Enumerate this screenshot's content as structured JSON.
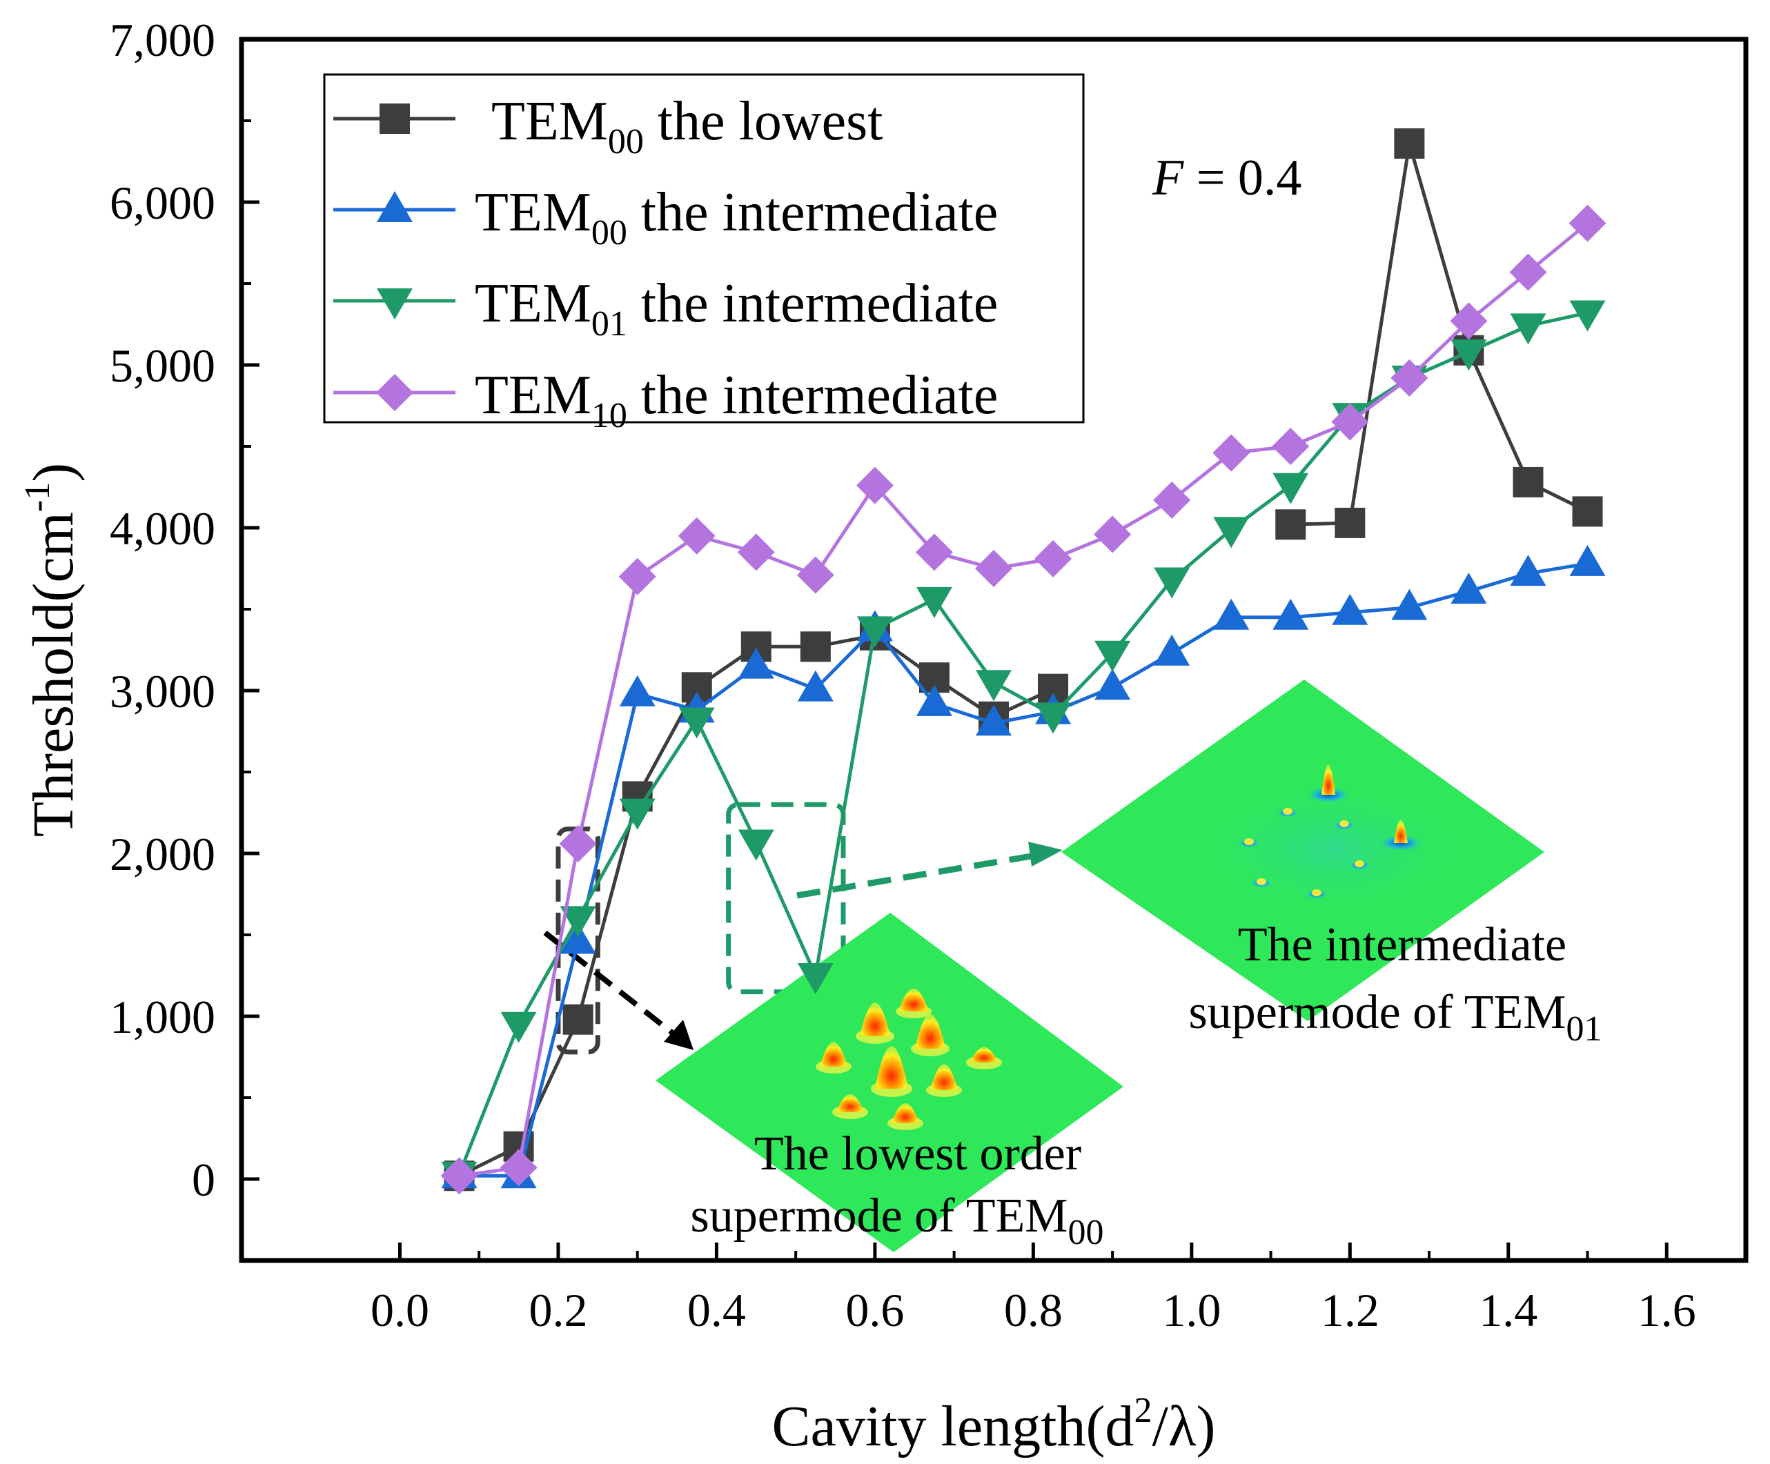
{
  "chart_data": {
    "type": "line",
    "xlabel": {
      "text": "Cavity length(d",
      "sup": "2",
      "after": "/λ)"
    },
    "ylabel": {
      "text": "Threshold(cm",
      "sup": "-1",
      "after": ")"
    },
    "xlim": [
      -0.2,
      1.7
    ],
    "ylim": [
      -500,
      7000
    ],
    "xticks": [
      0.0,
      0.2,
      0.4,
      0.6,
      0.8,
      1.0,
      1.2,
      1.4,
      1.6
    ],
    "xtick_labels": [
      "0.0",
      "0.2",
      "0.4",
      "0.6",
      "0.8",
      "1.0",
      "1.2",
      "1.4",
      "1.6"
    ],
    "yticks": [
      0,
      1000,
      2000,
      3000,
      4000,
      5000,
      6000,
      7000
    ],
    "ytick_labels": [
      "0",
      "1,000",
      "2,000",
      "3,000",
      "4,000",
      "5,000",
      "6,000",
      "7,000"
    ],
    "annotation": {
      "italic": "F",
      "rest": " = 0.4"
    },
    "series": [
      {
        "name": "TEM00 the lowest",
        "label": {
          "base": "TEM",
          "sub": "00",
          "rest": " the lowest"
        },
        "color": "#3d3d3d",
        "marker": "square",
        "segments": [
          {
            "x": [
              0.075,
              0.15,
              0.225,
              0.3,
              0.375,
              0.45,
              0.525,
              0.6,
              0.675,
              0.75,
              0.825
            ],
            "y": [
              20,
              200,
              980,
              2350,
              3020,
              3270,
              3270,
              3340,
              3080,
              2840,
              3010
            ]
          },
          {
            "x": [
              1.125,
              1.2,
              1.275,
              1.35,
              1.425,
              1.5
            ],
            "y": [
              4020,
              4030,
              6360,
              5090,
              4280,
              4100
            ]
          }
        ]
      },
      {
        "name": "TEM00 the intermediate",
        "label": {
          "base": "TEM",
          "sub": "00",
          "rest": " the intermediate"
        },
        "color": "#1a6ad6",
        "marker": "triangle-up",
        "segments": [
          {
            "x": [
              0.075,
              0.15,
              0.225,
              0.3,
              0.375,
              0.45,
              0.525,
              0.6,
              0.675,
              0.75,
              0.825,
              0.9,
              0.975,
              1.05,
              1.125,
              1.2,
              1.275,
              1.35,
              1.425,
              1.5
            ],
            "y": [
              20,
              20,
              1460,
              2980,
              2880,
              3150,
              3010,
              3380,
              2920,
              2800,
              2870,
              3020,
              3230,
              3450,
              3450,
              3480,
              3510,
              3610,
              3720,
              3780
            ]
          }
        ]
      },
      {
        "name": "TEM01 the intermediate",
        "label": {
          "base": "TEM",
          "sub": "01",
          "rest": " the intermediate"
        },
        "color": "#1e9a68",
        "marker": "triangle-down",
        "segments": [
          {
            "x": [
              0.075,
              0.15,
              0.225,
              0.3,
              0.375,
              0.45,
              0.525,
              0.6,
              0.675,
              0.75,
              0.825,
              0.9,
              0.975,
              1.05,
              1.125,
              1.2,
              1.275,
              1.35,
              1.425,
              1.5
            ],
            "y": [
              30,
              950,
              1600,
              2260,
              2820,
              2070,
              1250,
              3380,
              3560,
              3050,
              2850,
              3230,
              3680,
              3990,
              4260,
              4690,
              4920,
              5080,
              5240,
              5320
            ]
          }
        ]
      },
      {
        "name": "TEM10 the intermediate",
        "label": {
          "base": "TEM",
          "sub": "10",
          "rest": " the intermediate"
        },
        "color": "#b374e0",
        "marker": "diamond",
        "segments": [
          {
            "x": [
              0.075,
              0.15,
              0.225,
              0.3,
              0.375,
              0.45,
              0.525,
              0.6,
              0.675,
              0.75,
              0.825,
              0.9,
              0.975,
              1.05,
              1.125,
              1.2,
              1.275,
              1.35,
              1.425,
              1.5
            ],
            "y": [
              20,
              70,
              2060,
              3700,
              3950,
              3850,
              3710,
              4260,
              3850,
              3750,
              3810,
              3960,
              4170,
              4460,
              4500,
              4650,
              4920,
              5270,
              5570,
              5870
            ]
          }
        ]
      }
    ],
    "highlight_boxes": [
      {
        "x": [
          0.2,
          0.25
        ],
        "y": [
          780,
          2150
        ],
        "color": "#3d3d3d"
      },
      {
        "x": [
          0.415,
          0.56
        ],
        "y": [
          1150,
          2300
        ],
        "color": "#1e9a68"
      }
    ],
    "insets": [
      {
        "name": "lowest-order-supermode-TEM00",
        "line1": "The lowest order",
        "line2_base": "supermode of TEM",
        "line2_sub": "00"
      },
      {
        "name": "intermediate-supermode-TEM01",
        "line1": "The intermediate",
        "line2_base": "supermode of TEM",
        "line2_sub": "01"
      }
    ]
  }
}
